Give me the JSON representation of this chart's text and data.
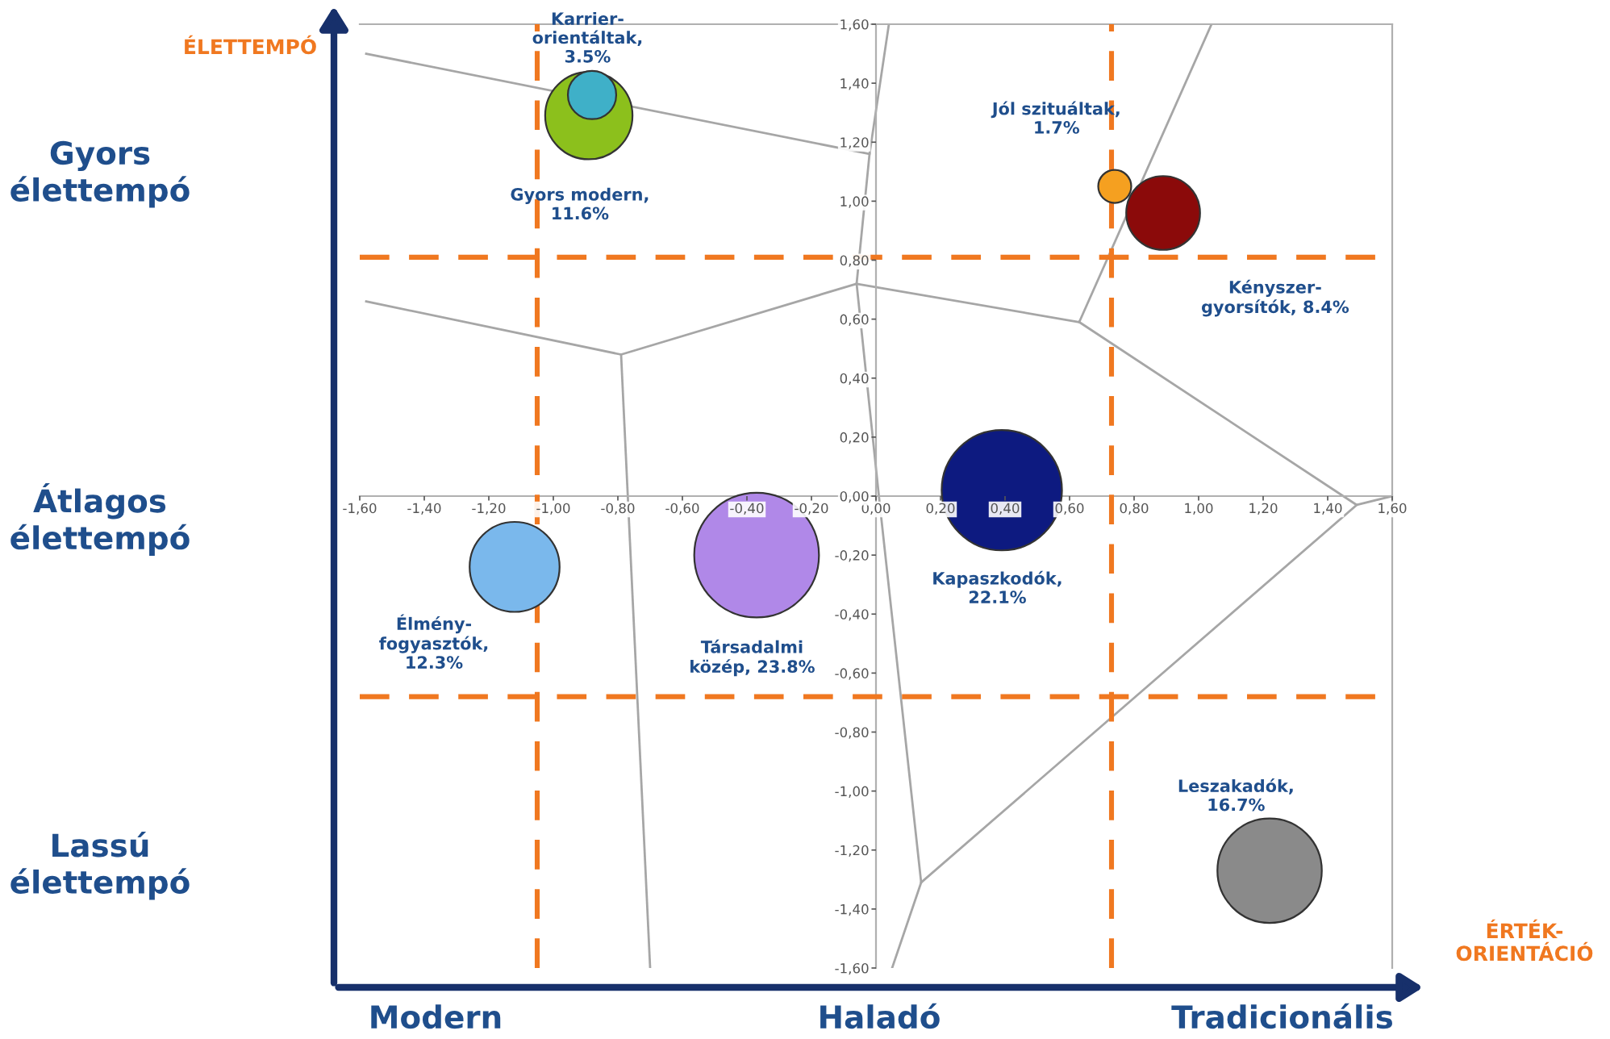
{
  "chart_data": {
    "type": "bubble",
    "xlim": [
      -1.6,
      1.6
    ],
    "ylim": [
      -1.6,
      1.6
    ],
    "xticks": [
      {
        "value": -1.6,
        "label": "-1,60"
      },
      {
        "value": -1.4,
        "label": "-1,40"
      },
      {
        "value": -1.2,
        "label": "-1,20"
      },
      {
        "value": -1.0,
        "label": "-1,00"
      },
      {
        "value": -0.8,
        "label": "-0,80"
      },
      {
        "value": -0.6,
        "label": "-0,60"
      },
      {
        "value": -0.4,
        "label": "-0,40"
      },
      {
        "value": -0.2,
        "label": "-0,20"
      },
      {
        "value": 0,
        "label": "0,00"
      },
      {
        "value": 0.2,
        "label": "0,20"
      },
      {
        "value": 0.4,
        "label": "0,40"
      },
      {
        "value": 0.6,
        "label": "0,60"
      },
      {
        "value": 0.8,
        "label": "0,80"
      },
      {
        "value": 1.0,
        "label": "1,00"
      },
      {
        "value": 1.2,
        "label": "1,20"
      },
      {
        "value": 1.4,
        "label": "1,40"
      },
      {
        "value": 1.6,
        "label": "1,60"
      }
    ],
    "yticks": [
      {
        "value": -1.6,
        "label": "-1,60"
      },
      {
        "value": -1.4,
        "label": "-1,40"
      },
      {
        "value": -1.2,
        "label": "-1,20"
      },
      {
        "value": -1.0,
        "label": "-1,00"
      },
      {
        "value": -0.8,
        "label": "-0,80"
      },
      {
        "value": -0.6,
        "label": "-0,60"
      },
      {
        "value": -0.4,
        "label": "-0,40"
      },
      {
        "value": -0.2,
        "label": "-0,20"
      },
      {
        "value": 0,
        "label": "0,00"
      },
      {
        "value": 0.2,
        "label": "0,20"
      },
      {
        "value": 0.4,
        "label": "0,40"
      },
      {
        "value": 0.6,
        "label": "0,60"
      },
      {
        "value": 0.8,
        "label": "0,80"
      },
      {
        "value": 1.0,
        "label": "1,00"
      },
      {
        "value": 1.2,
        "label": "1,20"
      },
      {
        "value": 1.4,
        "label": "1,40"
      },
      {
        "value": 1.6,
        "label": "1,60"
      }
    ],
    "series": [
      {
        "type": "line",
        "color": "#a6a6a6",
        "x": [
          -1.58,
          -0.02
        ],
        "values": [
          1.5,
          1.16
        ]
      },
      {
        "type": "line",
        "color": "#a6a6a6",
        "x": [
          0.04,
          -0.02,
          -0.06,
          0.01,
          0.14,
          0.05
        ],
        "values": [
          1.6,
          1.16,
          0.72,
          -0.01,
          -1.31,
          -1.6
        ]
      },
      {
        "type": "line",
        "color": "#a6a6a6",
        "x": [
          -1.58,
          -0.79,
          -0.06
        ],
        "values": [
          0.66,
          0.48,
          0.72
        ]
      },
      {
        "type": "line",
        "color": "#a6a6a6",
        "x": [
          -0.79,
          -0.7
        ],
        "values": [
          0.48,
          -1.6
        ]
      },
      {
        "type": "line",
        "color": "#a6a6a6",
        "x": [
          -0.06,
          0.63,
          1.04
        ],
        "values": [
          0.72,
          0.59,
          1.6
        ]
      },
      {
        "type": "line",
        "color": "#a6a6a6",
        "x": [
          0.63,
          1.49,
          1.6
        ],
        "values": [
          0.59,
          -0.03,
          0.0
        ]
      },
      {
        "type": "line",
        "color": "#a6a6a6",
        "x": [
          1.49,
          0.14
        ],
        "values": [
          -0.03,
          -1.31
        ]
      },
      {
        "name": "Gyors modern,\n11.6%",
        "color": "#8cc01c",
        "x": [
          -0.89
        ],
        "values": [
          1.29
        ],
        "sizes": [
          0.49
        ]
      },
      {
        "name": "Karrier-\norientáltak,\n3.5%",
        "color": "#3fb0c8",
        "x": [
          -0.88
        ],
        "values": [
          1.36
        ],
        "sizes": [
          0.15
        ]
      },
      {
        "name": "Jól szituáltak,\n1.7%",
        "color": "#f5a020",
        "x": [
          0.74
        ],
        "values": [
          1.05
        ],
        "sizes": [
          0.07
        ]
      },
      {
        "name": "Kényszer-\ngyorsítók, 8.4%",
        "color": "#8b0a0a",
        "x": [
          0.89
        ],
        "values": [
          0.96
        ],
        "sizes": [
          0.35
        ]
      },
      {
        "name": "Kapaszkodók,\n22.1%",
        "color": "#0d1a80",
        "x": [
          0.39
        ],
        "values": [
          0.02
        ],
        "sizes": [
          0.93
        ]
      },
      {
        "name": "Társadalmi\nközép, 23.8%",
        "color": "#b088e8",
        "x": [
          -0.37
        ],
        "values": [
          -0.2
        ],
        "sizes": [
          1.0
        ]
      },
      {
        "name": "Élmény-\nfogyasztók,\n12.3%",
        "color": "#7ab8ec",
        "x": [
          -1.12
        ],
        "values": [
          -0.24
        ],
        "sizes": [
          0.52
        ]
      },
      {
        "name": "Leszakadók,\n16.7%",
        "color": "#8a8a8a",
        "x": [
          1.22
        ],
        "values": [
          -1.27
        ],
        "sizes": [
          0.7
        ]
      }
    ],
    "ref_lines": [
      {
        "axis": "x",
        "value": -1.05,
        "color": "#f07820",
        "line_style": "dashed"
      },
      {
        "axis": "x",
        "value": 0.73,
        "color": "#f07820",
        "line_style": "dashed"
      },
      {
        "axis": "y",
        "value": 0.81,
        "color": "#f07820",
        "line_style": "dashed"
      },
      {
        "axis": "y",
        "value": -0.68,
        "color": "#f07820",
        "line_style": "dashed"
      }
    ],
    "annotations": [
      "ÉLETTEMPÓ",
      "Gyors\nélettempó",
      "Átlagos\nélettempó",
      "Lassú\nélettempó",
      "Modern",
      "Haladó",
      "Tradicionális",
      "ÉRTÉK-\nORIENTÁCIÓ"
    ]
  }
}
